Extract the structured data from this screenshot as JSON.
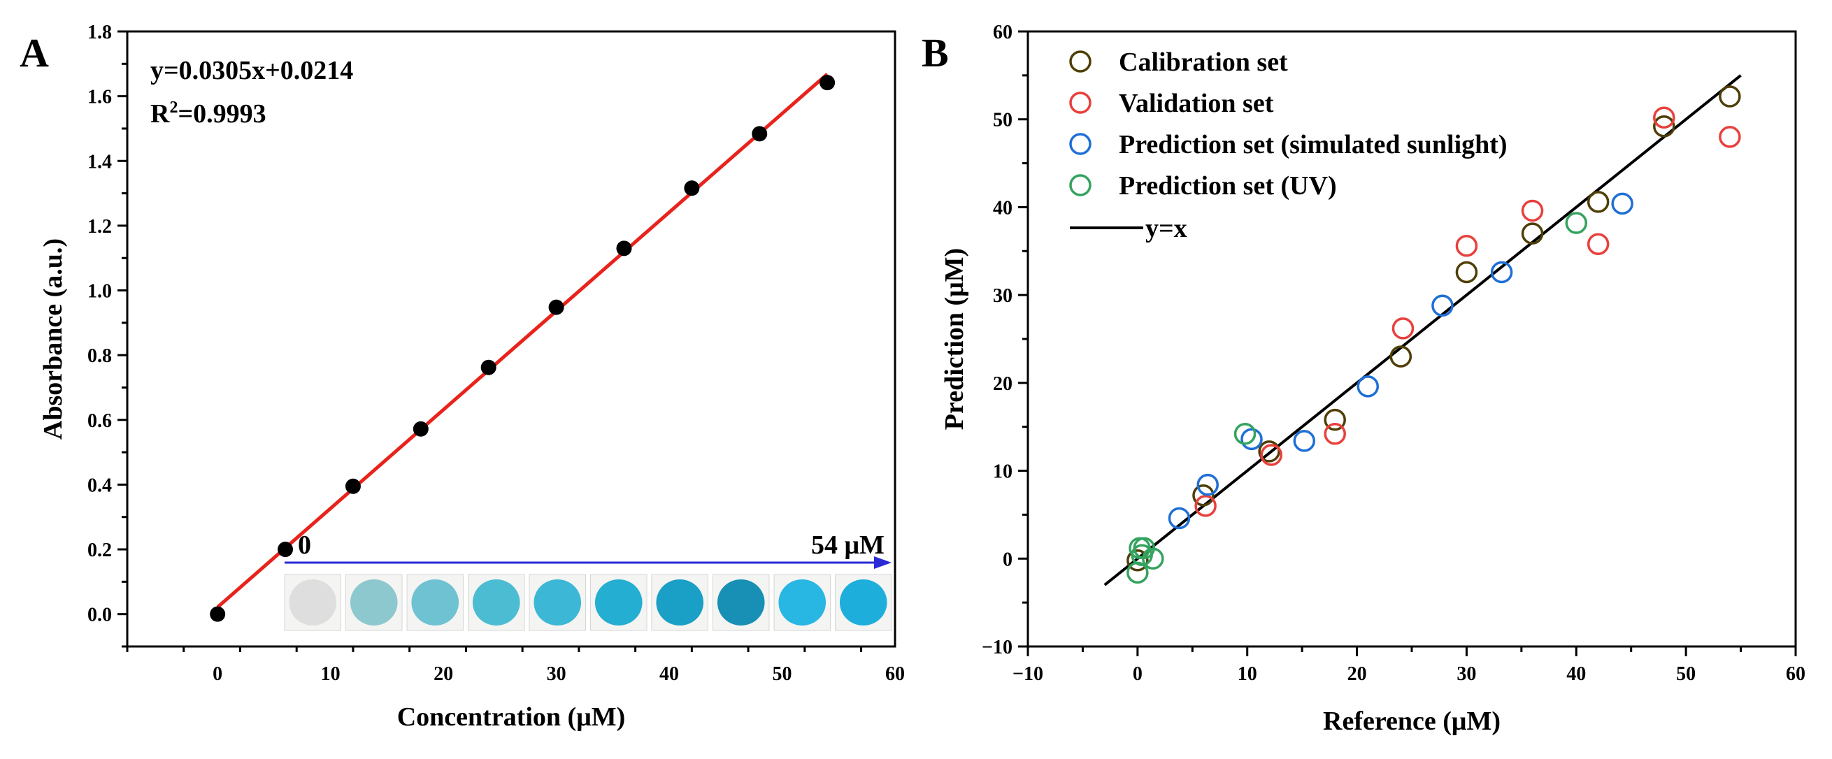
{
  "chart_data": [
    {
      "panel": "A",
      "type": "scatter",
      "xlabel": "Concentration (μM)",
      "ylabel": "Absorbance (a.u.)",
      "xlim": [
        -8,
        60
      ],
      "ylim": [
        -0.1,
        1.8
      ],
      "xticks": [
        0,
        10,
        20,
        30,
        40,
        50,
        60
      ],
      "yticks": [
        0.0,
        0.2,
        0.4,
        0.6,
        0.8,
        1.0,
        1.2,
        1.4,
        1.6,
        1.8
      ],
      "ytick_labels": [
        "0.0",
        "0.2",
        "0.4",
        "0.6",
        "0.8",
        "1.0",
        "1.2",
        "1.4",
        "1.6",
        "1.8"
      ],
      "series": [
        {
          "name": "Absorbance",
          "color": "#000000",
          "x": [
            0,
            6,
            12,
            18,
            24,
            30,
            36,
            42,
            48,
            54
          ],
          "y": [
            0.0,
            0.2,
            0.395,
            0.572,
            0.762,
            0.948,
            1.13,
            1.316,
            1.484,
            1.642
          ]
        }
      ],
      "fit": {
        "slope": 0.0305,
        "intercept": 0.0214,
        "x_range": [
          0,
          54
        ],
        "color": "#e8231c"
      },
      "equation": "y=0.0305x+0.0214",
      "r2_prefix": "R",
      "r2_sup": "2",
      "r2_value": "=0.9993",
      "inset": {
        "start_label": "0",
        "end_label": "54 μM",
        "arrow_color": "#2a2ad6",
        "wells": [
          "#dedede",
          "#8ec8cf",
          "#6ec2d2",
          "#4cbcd2",
          "#3cb8d6",
          "#24aed2",
          "#1a9fc6",
          "#1890b6",
          "#28b6e2",
          "#1eaedc"
        ]
      }
    },
    {
      "panel": "B",
      "type": "scatter",
      "xlabel": "Reference (μM)",
      "ylabel": "Prediction (μM)",
      "xlim": [
        -10,
        60
      ],
      "ylim": [
        -10,
        60
      ],
      "xticks": [
        -10,
        0,
        10,
        20,
        30,
        40,
        50,
        60
      ],
      "yticks": [
        -10,
        0,
        10,
        20,
        30,
        40,
        50,
        60
      ],
      "xtick_labels": [
        "−10",
        "0",
        "10",
        "20",
        "30",
        "40",
        "50",
        "60"
      ],
      "ytick_labels": [
        "−10",
        "0",
        "10",
        "20",
        "30",
        "40",
        "50",
        "60"
      ],
      "series": [
        {
          "name": "Calibration set",
          "color": "#4f3f06",
          "x": [
            0,
            6,
            12,
            18,
            24,
            30,
            36,
            42,
            48,
            54
          ],
          "y": [
            -0.2,
            7.2,
            12.2,
            15.8,
            23.0,
            32.6,
            37.0,
            40.6,
            49.2,
            52.6
          ]
        },
        {
          "name": "Validation set",
          "color": "#e8403c",
          "x": [
            6.2,
            12.2,
            18.0,
            24.2,
            30.0,
            36.0,
            42.0,
            48.0,
            54.0
          ],
          "y": [
            6.0,
            11.8,
            14.2,
            26.2,
            35.6,
            39.6,
            35.8,
            50.2,
            48.0
          ]
        },
        {
          "name": "Prediction set (simulated sunlight)",
          "color": "#1f6fd6",
          "x": [
            3.8,
            6.4,
            10.4,
            15.2,
            21.0,
            27.8,
            33.2,
            44.2
          ],
          "y": [
            4.6,
            8.4,
            13.6,
            13.4,
            19.6,
            28.8,
            32.6,
            40.4
          ]
        },
        {
          "name": "Prediction set  (UV)",
          "color": "#34a35f",
          "x": [
            0.0,
            0.2,
            0.4,
            0.6,
            1.4,
            9.8,
            40.0
          ],
          "y": [
            -1.6,
            1.2,
            0.4,
            1.2,
            0.0,
            14.2,
            38.2
          ]
        }
      ],
      "reference_line": {
        "name": "y=x",
        "x_range": [
          -3,
          55
        ],
        "color": "#000000"
      },
      "legend_position": "top-left"
    }
  ]
}
